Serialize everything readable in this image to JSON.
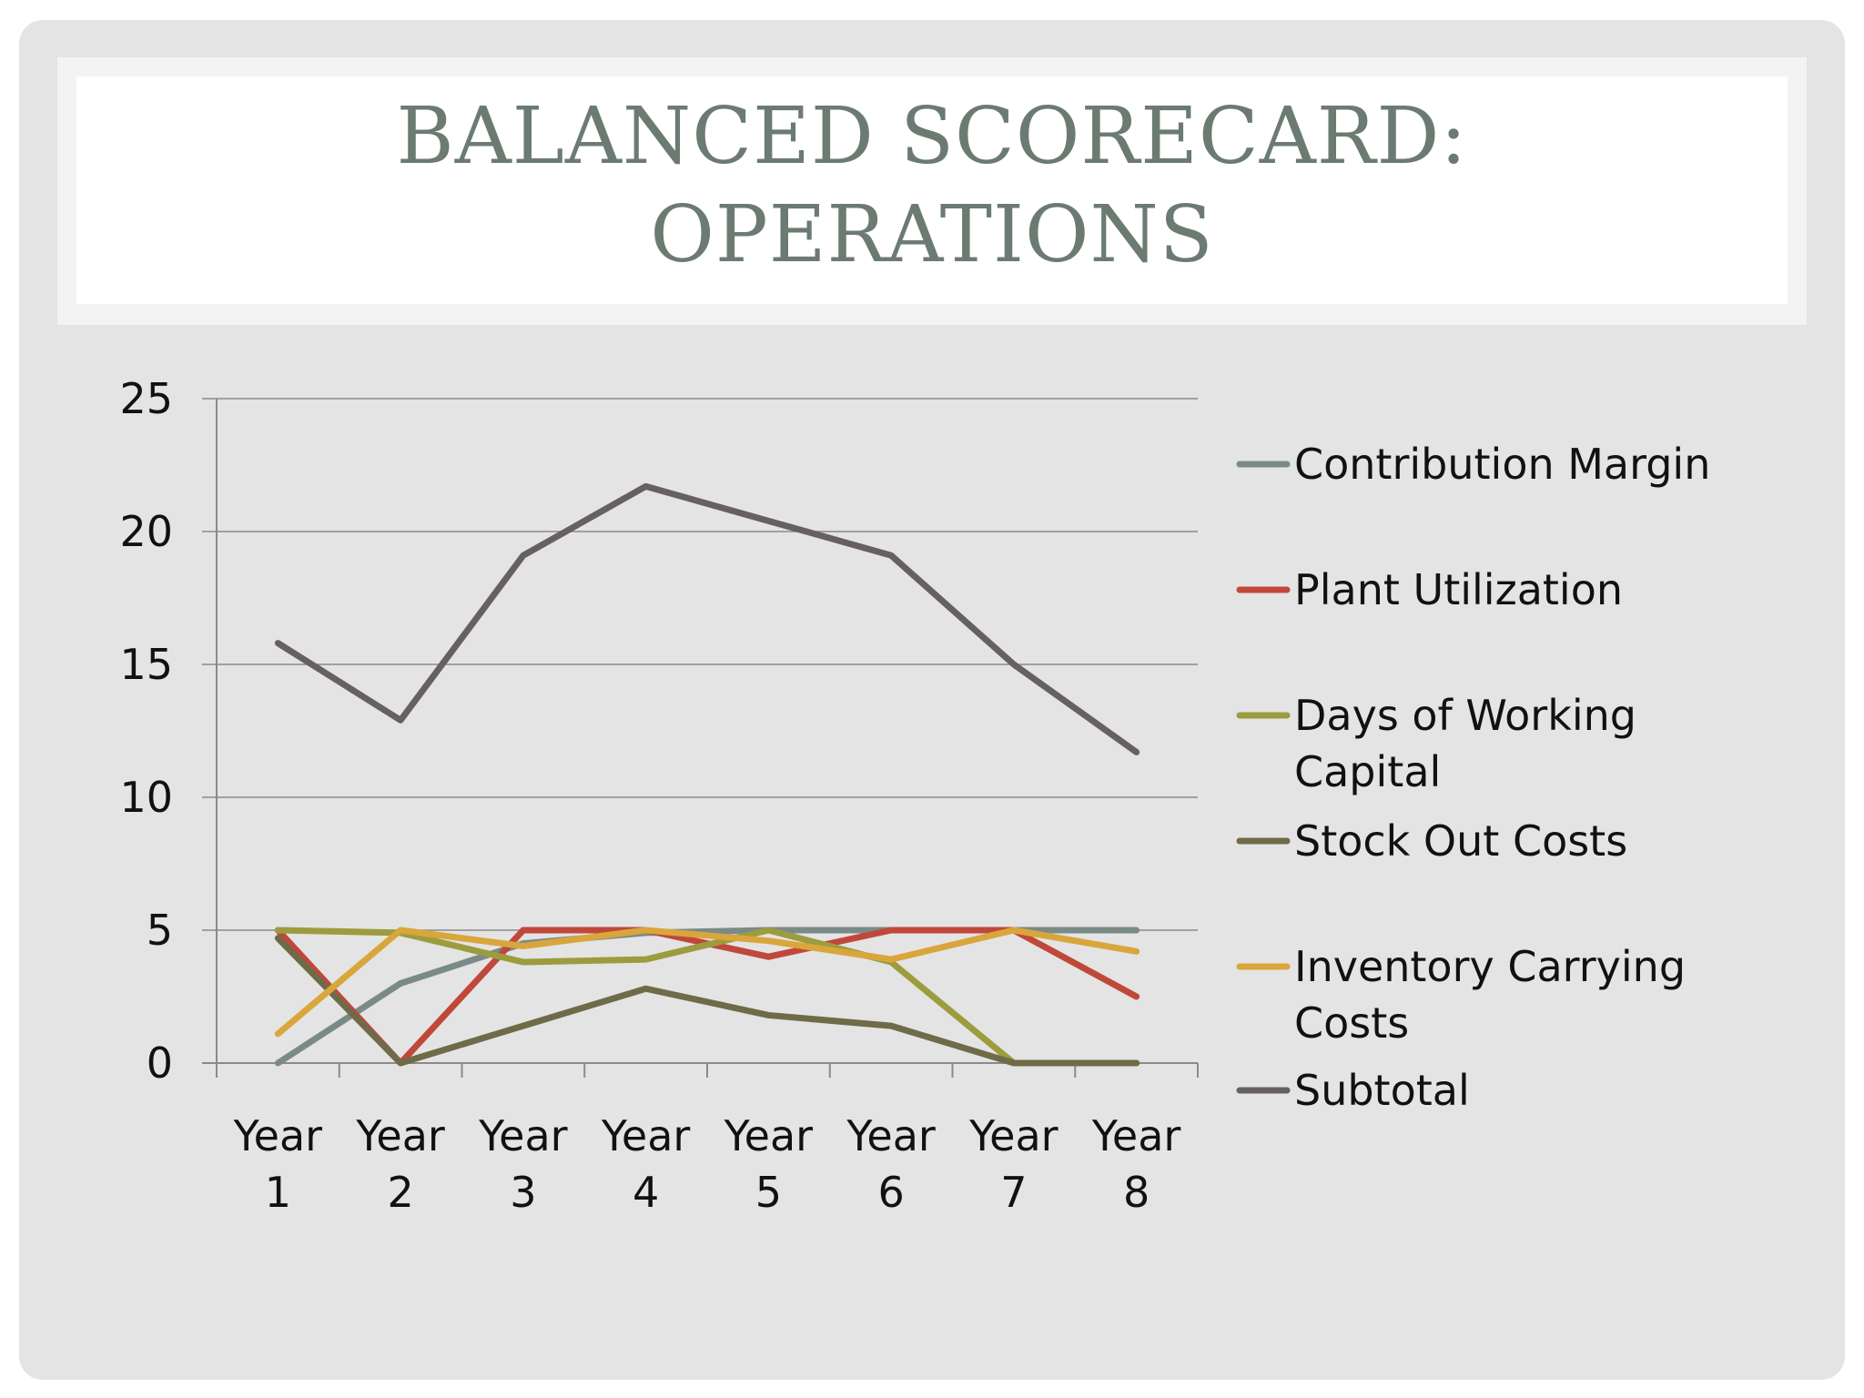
{
  "title": {
    "line1": "BALANCED SCORECARD:",
    "line2": "OPERATIONS"
  },
  "chart_data": {
    "type": "line",
    "title": "BALANCED SCORECARD: OPERATIONS",
    "categories": [
      "Year 1",
      "Year 2",
      "Year 3",
      "Year 4",
      "Year 5",
      "Year 6",
      "Year 7",
      "Year 8"
    ],
    "category_lines": [
      [
        "Year",
        "1"
      ],
      [
        "Year",
        "2"
      ],
      [
        "Year",
        "3"
      ],
      [
        "Year",
        "4"
      ],
      [
        "Year",
        "5"
      ],
      [
        "Year",
        "6"
      ],
      [
        "Year",
        "7"
      ],
      [
        "Year",
        "8"
      ]
    ],
    "ylim": [
      0,
      25
    ],
    "yticks": [
      0,
      5,
      10,
      15,
      20,
      25
    ],
    "grid": true,
    "legend_position": "right",
    "series": [
      {
        "name": "Contribution Margin",
        "legend_lines": [
          "Contribution Margin"
        ],
        "color": "#7a8b87",
        "values": [
          0,
          3,
          4.5,
          4.9,
          5,
          5,
          5,
          5
        ]
      },
      {
        "name": "Plant Utilization",
        "legend_lines": [
          "Plant Utilization"
        ],
        "color": "#c0483a",
        "values": [
          5,
          0,
          5,
          5,
          4,
          5,
          5,
          2.5
        ]
      },
      {
        "name": "Days of Working Capital",
        "legend_lines": [
          "Days of Working",
          "Capital"
        ],
        "color": "#9c9c3e",
        "values": [
          5,
          4.9,
          3.8,
          3.9,
          5,
          3.8,
          0,
          0
        ]
      },
      {
        "name": "Stock Out Costs",
        "legend_lines": [
          "Stock Out Costs"
        ],
        "color": "#6f6b48",
        "values": [
          4.7,
          0,
          1.4,
          2.8,
          1.8,
          1.4,
          0,
          0
        ]
      },
      {
        "name": "Inventory Carrying Costs",
        "legend_lines": [
          "Inventory Carrying",
          "Costs"
        ],
        "color": "#d9a63c",
        "values": [
          1.1,
          5,
          4.4,
          5,
          4.6,
          3.9,
          5,
          4.2
        ]
      },
      {
        "name": "Subtotal",
        "legend_lines": [
          "Subtotal"
        ],
        "color": "#665f63",
        "values": [
          15.8,
          12.9,
          19.1,
          21.7,
          20.4,
          19.1,
          15,
          11.7
        ]
      }
    ]
  }
}
